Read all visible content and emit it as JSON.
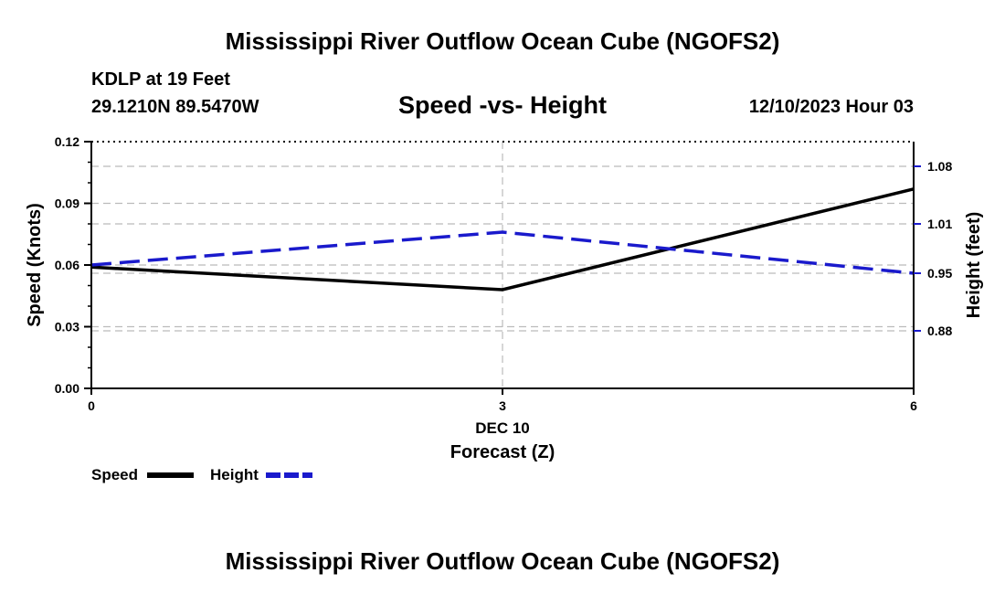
{
  "header": {
    "title": "Mississippi River Outflow Ocean Cube (NGOFS2)",
    "station": "KDLP at 19 Feet",
    "coordinates": "29.1210N  89.5470W",
    "subtitle": "Speed -vs- Height",
    "datetime": "12/10/2023 Hour 03"
  },
  "footer": {
    "title": "Mississippi River Outflow Ocean Cube (NGOFS2)"
  },
  "colors": {
    "speed": "#000000",
    "height": "#1a1acc",
    "grid": "#bbbbbb"
  },
  "chart_data": {
    "type": "line",
    "title": "Speed -vs- Height",
    "xlabel": "Forecast (Z)",
    "x_date_label": "DEC 10",
    "x": [
      0,
      3,
      6
    ],
    "xlim": [
      0,
      6
    ],
    "x_ticks": [
      "0",
      "3",
      "6"
    ],
    "y_left": {
      "label": "Speed (Knots)",
      "lim": [
        0,
        0.12
      ],
      "ticks": [
        "0.00",
        "0.03",
        "0.06",
        "0.09",
        "0.12"
      ]
    },
    "y_right": {
      "label": "Height (feet)",
      "lim": [
        0.81,
        1.11
      ],
      "ticks": [
        "0.88",
        "0.95",
        "1.01",
        "1.08"
      ]
    },
    "series": [
      {
        "name": "Speed",
        "axis": "left",
        "style": "solid",
        "values": [
          0.059,
          0.048,
          0.097
        ]
      },
      {
        "name": "Height",
        "axis": "right",
        "style": "dashed",
        "values": [
          0.96,
          1.0,
          0.95
        ]
      }
    ],
    "grid": true,
    "legend": [
      "Speed",
      "Height"
    ],
    "legend_position": "bottom-left"
  }
}
